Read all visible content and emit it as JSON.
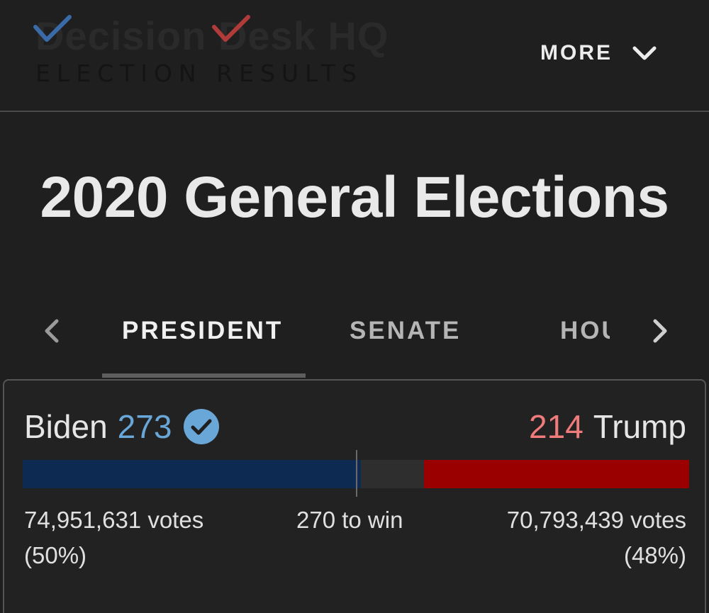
{
  "header": {
    "logo_wordmark": "Decision Desk HQ",
    "logo_subtitle": "ELECTION RESULTS",
    "more_label": "MORE",
    "check_blue_color": "#3b6aa8",
    "check_red_color": "#b13a3a"
  },
  "page": {
    "title": "2020 General Elections"
  },
  "tabs": {
    "items": [
      {
        "label": "PRESIDENT",
        "active": true
      },
      {
        "label": "SENATE",
        "active": false
      },
      {
        "label": "HOU",
        "active": false
      }
    ],
    "prev_icon": "chevron-left-icon",
    "next_icon": "chevron-right-icon"
  },
  "race": {
    "left": {
      "name": "Biden",
      "electoral_votes": "273",
      "votes": "74,951,631 votes",
      "percent": "(50%)",
      "winner": true,
      "color": "#6aa7d9",
      "bar_color": "#0c2a52",
      "ev_value": 273
    },
    "right": {
      "name": "Trump",
      "electoral_votes": "214",
      "votes": "70,793,439 votes",
      "percent": "(48%)",
      "color": "#f07b7b",
      "bar_color": "#9b0000",
      "ev_value": 214
    },
    "to_win": "270 to win",
    "to_win_value": 270,
    "total_electoral": 538
  }
}
